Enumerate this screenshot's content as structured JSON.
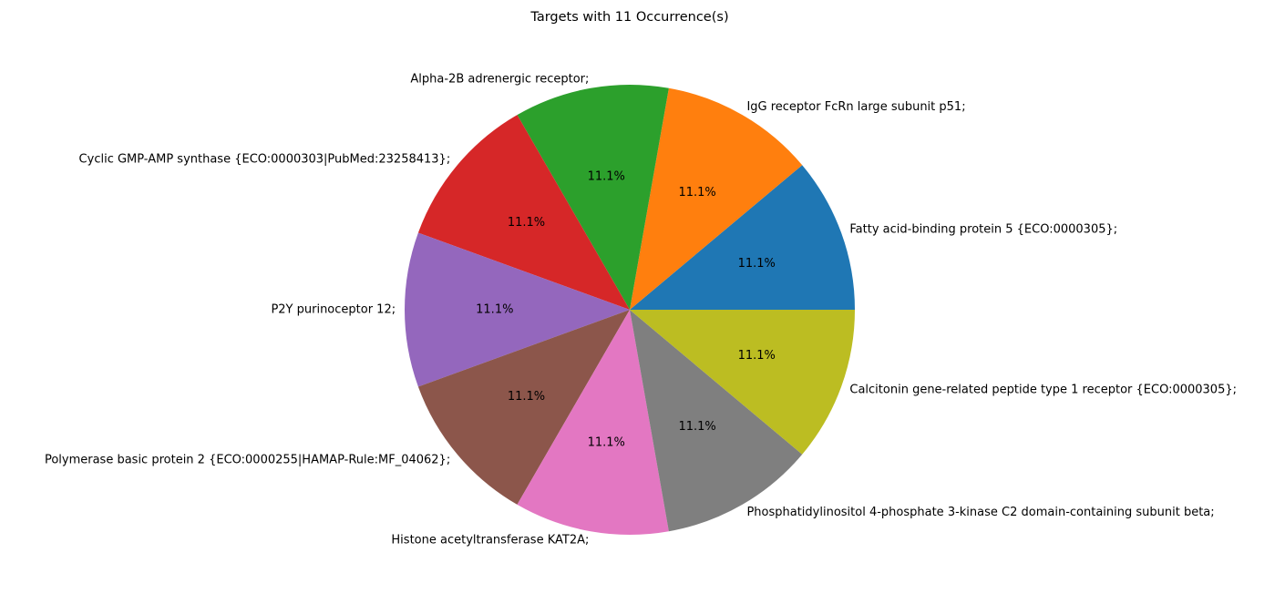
{
  "chart_data": {
    "type": "pie",
    "title": "Targets with 11 Occurrence(s)",
    "slices": [
      {
        "label": "Fatty acid-binding protein 5 {ECO:0000305};",
        "value": 11,
        "percent_label": "11.1%",
        "color": "#1f77b4"
      },
      {
        "label": "IgG receptor FcRn large subunit p51;",
        "value": 11,
        "percent_label": "11.1%",
        "color": "#ff7f0e"
      },
      {
        "label": "Alpha-2B adrenergic receptor;",
        "value": 11,
        "percent_label": "11.1%",
        "color": "#2ca02c"
      },
      {
        "label": "Cyclic GMP-AMP synthase {ECO:0000303|PubMed:23258413};",
        "value": 11,
        "percent_label": "11.1%",
        "color": "#d62728"
      },
      {
        "label": "P2Y purinoceptor 12;",
        "value": 11,
        "percent_label": "11.1%",
        "color": "#9467bd"
      },
      {
        "label": "Polymerase basic protein 2 {ECO:0000255|HAMAP-Rule:MF_04062};",
        "value": 11,
        "percent_label": "11.1%",
        "color": "#8c564b"
      },
      {
        "label": "Histone acetyltransferase KAT2A;",
        "value": 11,
        "percent_label": "11.1%",
        "color": "#e377c2"
      },
      {
        "label": "Phosphatidylinositol 4-phosphate 3-kinase C2 domain-containing subunit beta;",
        "value": 11,
        "percent_label": "11.1%",
        "color": "#7f7f7f"
      },
      {
        "label": "Calcitonin gene-related peptide type 1 receptor {ECO:0000305};",
        "value": 11,
        "percent_label": "11.1%",
        "color": "#bcbd22"
      }
    ],
    "start_angle_deg": 0,
    "direction": "counterclockwise"
  }
}
